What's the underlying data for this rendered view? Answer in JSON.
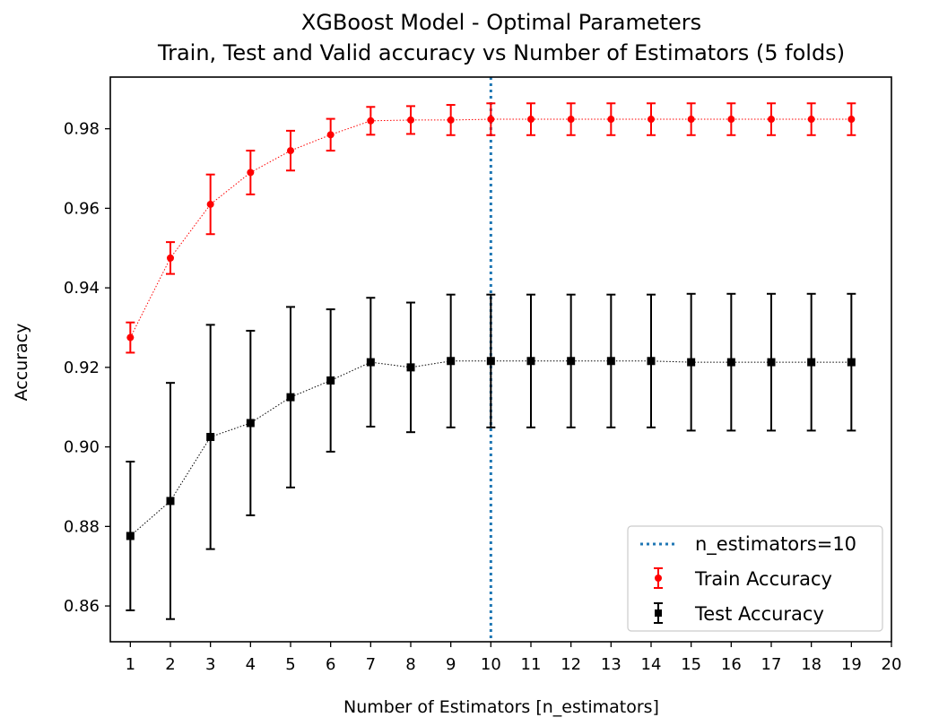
{
  "chart_data": {
    "type": "scatter",
    "title": [
      "XGBoost Model - Optimal Parameters",
      "Train, Test and Valid accuracy vs Number of Estimators (5 folds)"
    ],
    "xlabel": "Number of Estimators [n_estimators]",
    "ylabel": "Accuracy",
    "xlim": [
      0.5,
      20
    ],
    "ylim": [
      0.851,
      0.993
    ],
    "xticks": [
      1,
      2,
      3,
      4,
      5,
      6,
      7,
      8,
      9,
      10,
      11,
      12,
      13,
      14,
      15,
      16,
      17,
      18,
      19,
      20
    ],
    "yticks": [
      0.86,
      0.88,
      0.9,
      0.92,
      0.94,
      0.96,
      0.98
    ],
    "ytick_labels": [
      "0.86",
      "0.88",
      "0.90",
      "0.92",
      "0.94",
      "0.96",
      "0.98"
    ],
    "grid": false,
    "legend_position": "lower right",
    "vline": {
      "x": 10,
      "label": "n_estimators=10",
      "color": "#1f77b4",
      "style": "dotted"
    },
    "series": [
      {
        "name": "Train Accuracy",
        "color": "#ff0000",
        "marker": "circle",
        "x": [
          1,
          2,
          3,
          4,
          5,
          6,
          7,
          8,
          9,
          10,
          11,
          12,
          13,
          14,
          15,
          16,
          17,
          18,
          19
        ],
        "y": [
          0.9275,
          0.9475,
          0.961,
          0.969,
          0.9745,
          0.9785,
          0.982,
          0.9822,
          0.9822,
          0.9824,
          0.9824,
          0.9824,
          0.9824,
          0.9824,
          0.9824,
          0.9824,
          0.9824,
          0.9824,
          0.9824
        ],
        "err": [
          0.0038,
          0.004,
          0.0075,
          0.0055,
          0.005,
          0.004,
          0.0035,
          0.0035,
          0.0038,
          0.004,
          0.004,
          0.004,
          0.004,
          0.004,
          0.004,
          0.004,
          0.004,
          0.004,
          0.004
        ]
      },
      {
        "name": "Test Accuracy",
        "color": "#000000",
        "marker": "square",
        "x": [
          1,
          2,
          3,
          4,
          5,
          6,
          7,
          8,
          9,
          10,
          11,
          12,
          13,
          14,
          15,
          16,
          17,
          18,
          19
        ],
        "y": [
          0.8776,
          0.8864,
          0.9025,
          0.906,
          0.9125,
          0.9167,
          0.9213,
          0.92,
          0.9216,
          0.9216,
          0.9216,
          0.9216,
          0.9216,
          0.9216,
          0.9213,
          0.9213,
          0.9213,
          0.9213,
          0.9213
        ],
        "err": [
          0.0187,
          0.0297,
          0.0282,
          0.0232,
          0.0227,
          0.0179,
          0.0162,
          0.0163,
          0.0167,
          0.0167,
          0.0167,
          0.0167,
          0.0167,
          0.0167,
          0.0172,
          0.0172,
          0.0172,
          0.0172,
          0.0172
        ]
      }
    ]
  }
}
